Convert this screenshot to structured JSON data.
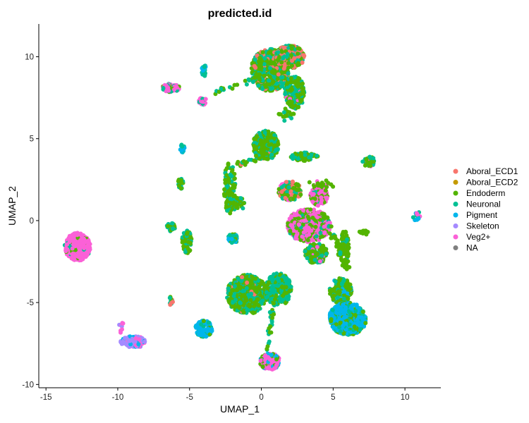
{
  "chart_data": {
    "type": "scatter",
    "title": "predicted.id",
    "xlabel": "UMAP_1",
    "ylabel": "UMAP_2",
    "xlim": [
      -15.5,
      12.5
    ],
    "ylim": [
      -10.2,
      12.0
    ],
    "x_ticks": [
      -15,
      -10,
      -5,
      0,
      5,
      10
    ],
    "y_ticks": [
      -10,
      -5,
      0,
      5,
      10
    ],
    "x_tick_labels": [
      "-15",
      "-10",
      "-5",
      "0",
      "5",
      "10"
    ],
    "y_tick_labels": [
      "-10",
      "-5",
      "0",
      "5",
      "10"
    ],
    "grid": false,
    "legend_position": "right",
    "categories": [
      {
        "name": "Aboral_ECD1",
        "color": "#F8766D"
      },
      {
        "name": "Aboral_ECD2",
        "color": "#C49A00"
      },
      {
        "name": "Endoderm",
        "color": "#53B400"
      },
      {
        "name": "Neuronal",
        "color": "#00C094"
      },
      {
        "name": "Pigment",
        "color": "#00B6EB"
      },
      {
        "name": "Skeleton",
        "color": "#A58AFF"
      },
      {
        "name": "Veg2+",
        "color": "#FB61D7"
      },
      {
        "name": "NA",
        "color": "#7F7F7F"
      }
    ],
    "clusters": [
      {
        "cx": -12.8,
        "cy": -1.6,
        "rx": 0.9,
        "ry": 0.85,
        "n": 420,
        "shape": "ellipse",
        "mix": {
          "Veg2+": 0.9,
          "Endoderm": 0.05,
          "Neuronal": 0.05
        }
      },
      {
        "cx": -8.9,
        "cy": -7.4,
        "rx": 0.9,
        "ry": 0.35,
        "n": 90,
        "shape": "ellipse",
        "mix": {
          "Skeleton": 0.7,
          "Pigment": 0.15,
          "Veg2+": 0.15
        }
      },
      {
        "cx": -9.8,
        "cy": -6.5,
        "rx": 0.25,
        "ry": 0.35,
        "n": 10,
        "shape": "ellipse",
        "mix": {
          "Veg2+": 0.6,
          "Skeleton": 0.4
        }
      },
      {
        "cx": -6.3,
        "cy": 8.1,
        "rx": 0.6,
        "ry": 0.25,
        "n": 110,
        "shape": "ellipse",
        "mix": {
          "Veg2+": 0.6,
          "Endoderm": 0.2,
          "Neuronal": 0.2
        }
      },
      {
        "cx": -4.0,
        "cy": 9.2,
        "rx": 0.15,
        "ry": 0.4,
        "n": 20,
        "shape": "ellipse",
        "mix": {
          "Neuronal": 0.6,
          "Pigment": 0.4
        }
      },
      {
        "cx": -4.1,
        "cy": 7.3,
        "rx": 0.3,
        "ry": 0.25,
        "n": 25,
        "shape": "ellipse",
        "mix": {
          "Veg2+": 0.5,
          "Neuronal": 0.5
        }
      },
      {
        "cx": -5.5,
        "cy": 4.4,
        "rx": 0.15,
        "ry": 0.25,
        "n": 15,
        "shape": "ellipse",
        "mix": {
          "Neuronal": 0.6,
          "Pigment": 0.4
        }
      },
      {
        "cx": -5.6,
        "cy": 2.3,
        "rx": 0.2,
        "ry": 0.35,
        "n": 25,
        "shape": "ellipse",
        "mix": {
          "Endoderm": 0.6,
          "Neuronal": 0.4
        }
      },
      {
        "cx": -6.3,
        "cy": -0.4,
        "rx": 0.3,
        "ry": 0.25,
        "n": 30,
        "shape": "ellipse",
        "mix": {
          "Neuronal": 0.6,
          "Endoderm": 0.4
        }
      },
      {
        "cx": -5.2,
        "cy": -1.3,
        "rx": 0.35,
        "ry": 0.7,
        "n": 60,
        "shape": "ellipse",
        "mix": {
          "Endoderm": 0.55,
          "Neuronal": 0.45
        }
      },
      {
        "cx": -6.3,
        "cy": -4.9,
        "rx": 0.15,
        "ry": 0.25,
        "n": 12,
        "shape": "ellipse",
        "mix": {
          "Endoderm": 0.5,
          "Aboral_ECD1": 0.25,
          "Neuronal": 0.25
        }
      },
      {
        "cx": -4.0,
        "cy": -6.6,
        "rx": 0.6,
        "ry": 0.5,
        "n": 110,
        "shape": "ellipse",
        "mix": {
          "Pigment": 0.8,
          "Neuronal": 0.15,
          "Endoderm": 0.05
        }
      },
      {
        "cx": -2.2,
        "cy": 2.0,
        "rx": 0.4,
        "ry": 1.6,
        "n": 110,
        "shape": "ellipse",
        "mix": {
          "Endoderm": 0.7,
          "Neuronal": 0.3
        }
      },
      {
        "cx": -1.6,
        "cy": 1.0,
        "rx": 0.5,
        "ry": 0.4,
        "n": 40,
        "shape": "ellipse",
        "mix": {
          "Endoderm": 0.6,
          "Neuronal": 0.4
        }
      },
      {
        "cx": -2.0,
        "cy": -1.1,
        "rx": 0.35,
        "ry": 0.3,
        "n": 40,
        "shape": "ellipse",
        "mix": {
          "Neuronal": 0.5,
          "Pigment": 0.3,
          "Endoderm": 0.2
        }
      },
      {
        "cx": -1.0,
        "cy": -4.5,
        "rx": 1.4,
        "ry": 1.2,
        "n": 500,
        "shape": "ellipse",
        "mix": {
          "Endoderm": 0.6,
          "Neuronal": 0.35,
          "Aboral_ECD1": 0.05
        }
      },
      {
        "cx": 1.2,
        "cy": -4.2,
        "rx": 0.9,
        "ry": 1.0,
        "n": 250,
        "shape": "ellipse",
        "mix": {
          "Neuronal": 0.6,
          "Endoderm": 0.4
        }
      },
      {
        "cx": 0.6,
        "cy": -8.6,
        "rx": 0.7,
        "ry": 0.5,
        "n": 130,
        "shape": "ellipse",
        "mix": {
          "Veg2+": 0.65,
          "Endoderm": 0.2,
          "Pigment": 0.15
        }
      },
      {
        "cx": 0.3,
        "cy": 4.6,
        "rx": 0.9,
        "ry": 0.9,
        "n": 300,
        "shape": "ellipse",
        "mix": {
          "Endoderm": 0.55,
          "Neuronal": 0.4,
          "Aboral_ECD1": 0.05
        }
      },
      {
        "cx": 0.6,
        "cy": 9.2,
        "rx": 1.3,
        "ry": 1.3,
        "n": 500,
        "shape": "ellipse",
        "mix": {
          "Endoderm": 0.55,
          "Neuronal": 0.3,
          "Aboral_ECD1": 0.15
        }
      },
      {
        "cx": 2.0,
        "cy": 10.0,
        "rx": 1.0,
        "ry": 0.7,
        "n": 350,
        "shape": "ellipse",
        "mix": {
          "Aboral_ECD1": 0.45,
          "Endoderm": 0.3,
          "Neuronal": 0.25
        }
      },
      {
        "cx": 2.3,
        "cy": 7.8,
        "rx": 0.7,
        "ry": 1.0,
        "n": 180,
        "shape": "ellipse",
        "mix": {
          "Endoderm": 0.55,
          "Neuronal": 0.4,
          "Veg2+": 0.05
        }
      },
      {
        "cx": 3.0,
        "cy": 3.9,
        "rx": 1.0,
        "ry": 0.25,
        "n": 80,
        "shape": "ellipse",
        "mix": {
          "Endoderm": 0.6,
          "Neuronal": 0.4
        }
      },
      {
        "cx": 2.0,
        "cy": 1.8,
        "rx": 0.8,
        "ry": 0.6,
        "n": 160,
        "shape": "ellipse",
        "mix": {
          "Endoderm": 0.45,
          "Aboral_ECD1": 0.2,
          "Neuronal": 0.2,
          "Veg2+": 0.15
        }
      },
      {
        "cx": 4.0,
        "cy": 1.5,
        "rx": 0.6,
        "ry": 0.6,
        "n": 120,
        "shape": "ellipse",
        "mix": {
          "Veg2+": 0.5,
          "Endoderm": 0.4,
          "Neuronal": 0.1
        }
      },
      {
        "cx": 3.3,
        "cy": -0.3,
        "rx": 1.5,
        "ry": 1.0,
        "n": 500,
        "shape": "ellipse",
        "mix": {
          "Veg2+": 0.5,
          "Endoderm": 0.4,
          "Neuronal": 0.1
        }
      },
      {
        "cx": 3.8,
        "cy": -2.0,
        "rx": 0.8,
        "ry": 0.6,
        "n": 150,
        "shape": "ellipse",
        "mix": {
          "Endoderm": 0.7,
          "Neuronal": 0.2,
          "Veg2+": 0.1
        }
      },
      {
        "cx": 5.8,
        "cy": -1.8,
        "rx": 0.3,
        "ry": 1.2,
        "n": 80,
        "shape": "ellipse",
        "mix": {
          "Endoderm": 0.9,
          "Neuronal": 0.1
        }
      },
      {
        "cx": 5.5,
        "cy": -4.3,
        "rx": 0.8,
        "ry": 0.8,
        "n": 160,
        "shape": "ellipse",
        "mix": {
          "Endoderm": 0.7,
          "Neuronal": 0.2,
          "Pigment": 0.1
        }
      },
      {
        "cx": 6.0,
        "cy": -6.0,
        "rx": 1.3,
        "ry": 1.0,
        "n": 500,
        "shape": "ellipse",
        "mix": {
          "Pigment": 0.55,
          "Neuronal": 0.25,
          "Endoderm": 0.2
        }
      },
      {
        "cx": 7.5,
        "cy": 3.6,
        "rx": 0.45,
        "ry": 0.3,
        "n": 45,
        "shape": "ellipse",
        "mix": {
          "Endoderm": 0.5,
          "Neuronal": 0.4,
          "Veg2+": 0.1
        }
      },
      {
        "cx": 7.3,
        "cy": -0.7,
        "rx": 0.5,
        "ry": 0.15,
        "n": 12,
        "shape": "ellipse",
        "mix": {
          "Endoderm": 0.7,
          "Neuronal": 0.3
        }
      },
      {
        "cx": 10.8,
        "cy": 0.3,
        "rx": 0.25,
        "ry": 0.3,
        "n": 15,
        "shape": "ellipse",
        "mix": {
          "Pigment": 0.6,
          "Neuronal": 0.2,
          "Veg2+": 0.2
        }
      },
      {
        "x0": -3.2,
        "y0": 7.9,
        "x1": 0.2,
        "y1": 8.8,
        "w": 0.2,
        "n": 25,
        "shape": "line",
        "mix": {
          "Endoderm": 0.7,
          "Neuronal": 0.3
        }
      },
      {
        "x0": -1.8,
        "y0": 3.4,
        "x1": -0.3,
        "y1": 3.8,
        "w": 0.2,
        "n": 18,
        "shape": "line",
        "mix": {
          "Endoderm": 0.6,
          "Aboral_ECD1": 0.2,
          "Neuronal": 0.2
        }
      },
      {
        "x0": 1.2,
        "y0": 6.5,
        "x1": 2.4,
        "y1": 6.4,
        "w": 0.3,
        "n": 20,
        "shape": "line",
        "mix": {
          "Endoderm": 0.7,
          "Neuronal": 0.3
        }
      },
      {
        "x0": 0.9,
        "y0": -4.5,
        "x1": 0.4,
        "y1": -8.0,
        "w": 0.15,
        "n": 30,
        "shape": "line",
        "mix": {
          "Neuronal": 0.5,
          "Endoderm": 0.5
        }
      },
      {
        "x0": 3.5,
        "y0": 2.3,
        "x1": 5.0,
        "y1": 2.0,
        "w": 0.25,
        "n": 20,
        "shape": "line",
        "mix": {
          "Endoderm": 0.7,
          "Veg2+": 0.3
        }
      },
      {
        "x0": 4.8,
        "y0": -0.5,
        "x1": 5.9,
        "y1": -3.0,
        "w": 0.25,
        "n": 30,
        "shape": "line",
        "mix": {
          "Endoderm": 0.9,
          "Neuronal": 0.1
        }
      }
    ]
  }
}
